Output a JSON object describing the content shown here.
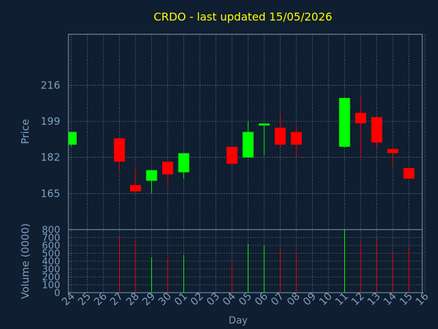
{
  "chart_data": {
    "type": "candlestick",
    "title": "CRDO - last updated 15/05/2026",
    "xlabel": "Day",
    "price_panel": {
      "ylabel": "Price",
      "ylim": [
        148,
        240
      ],
      "yticks": [
        165,
        182,
        199,
        216
      ],
      "grid": true
    },
    "volume_panel": {
      "ylabel": "Volume (0000)",
      "ylim": [
        0,
        800
      ],
      "yticks": [
        0,
        100,
        200,
        300,
        400,
        500,
        600,
        700,
        800
      ],
      "grid": true
    },
    "x_tick_labels": [
      "24",
      "25",
      "26",
      "27",
      "28",
      "29",
      "30",
      "01",
      "02",
      "03",
      "04",
      "05",
      "06",
      "07",
      "08",
      "09",
      "10",
      "11",
      "12",
      "13",
      "14",
      "15",
      "16"
    ],
    "candles": [
      {
        "day": "24",
        "open": 188,
        "high": 194,
        "low": 187,
        "close": 194,
        "volume": 0
      },
      {
        "day": "27",
        "open": 191,
        "high": 191,
        "low": 176,
        "close": 180,
        "volume": 700
      },
      {
        "day": "28",
        "open": 169,
        "high": 177,
        "low": 165,
        "close": 166,
        "volume": 650
      },
      {
        "day": "29",
        "open": 171,
        "high": 176,
        "low": 165,
        "close": 176,
        "volume": 450
      },
      {
        "day": "30",
        "open": 180,
        "high": 180,
        "low": 168,
        "close": 174,
        "volume": 450
      },
      {
        "day": "01",
        "open": 175,
        "high": 184,
        "low": 172,
        "close": 184,
        "volume": 480
      },
      {
        "day": "04",
        "open": 187,
        "high": 187,
        "low": 178,
        "close": 179,
        "volume": 370
      },
      {
        "day": "05",
        "open": 182,
        "high": 199,
        "low": 182,
        "close": 194,
        "volume": 620
      },
      {
        "day": "06",
        "open": 197,
        "high": 198,
        "low": 183,
        "close": 198,
        "volume": 600
      },
      {
        "day": "07",
        "open": 196,
        "high": 203,
        "low": 187,
        "close": 188,
        "volume": 560
      },
      {
        "day": "08",
        "open": 194,
        "high": 197,
        "low": 182,
        "close": 188,
        "volume": 500
      },
      {
        "day": "11",
        "open": 187,
        "high": 210,
        "low": 187,
        "close": 210,
        "volume": 800
      },
      {
        "day": "12",
        "open": 203,
        "high": 210,
        "low": 182,
        "close": 198,
        "volume": 640
      },
      {
        "day": "13",
        "open": 201,
        "high": 201,
        "low": 186,
        "close": 189,
        "volume": 680
      },
      {
        "day": "14",
        "open": 186,
        "high": 186,
        "low": 178,
        "close": 184,
        "volume": 520
      },
      {
        "day": "15",
        "open": 177,
        "high": 177,
        "low": 172,
        "close": 172,
        "volume": 560
      }
    ],
    "colors": {
      "background": "#0f1e30",
      "up": "#00ff00",
      "down": "#ff0000",
      "axis_text": "#7f9fc0",
      "title": "#ffff00",
      "grid": "#ffffff"
    }
  }
}
